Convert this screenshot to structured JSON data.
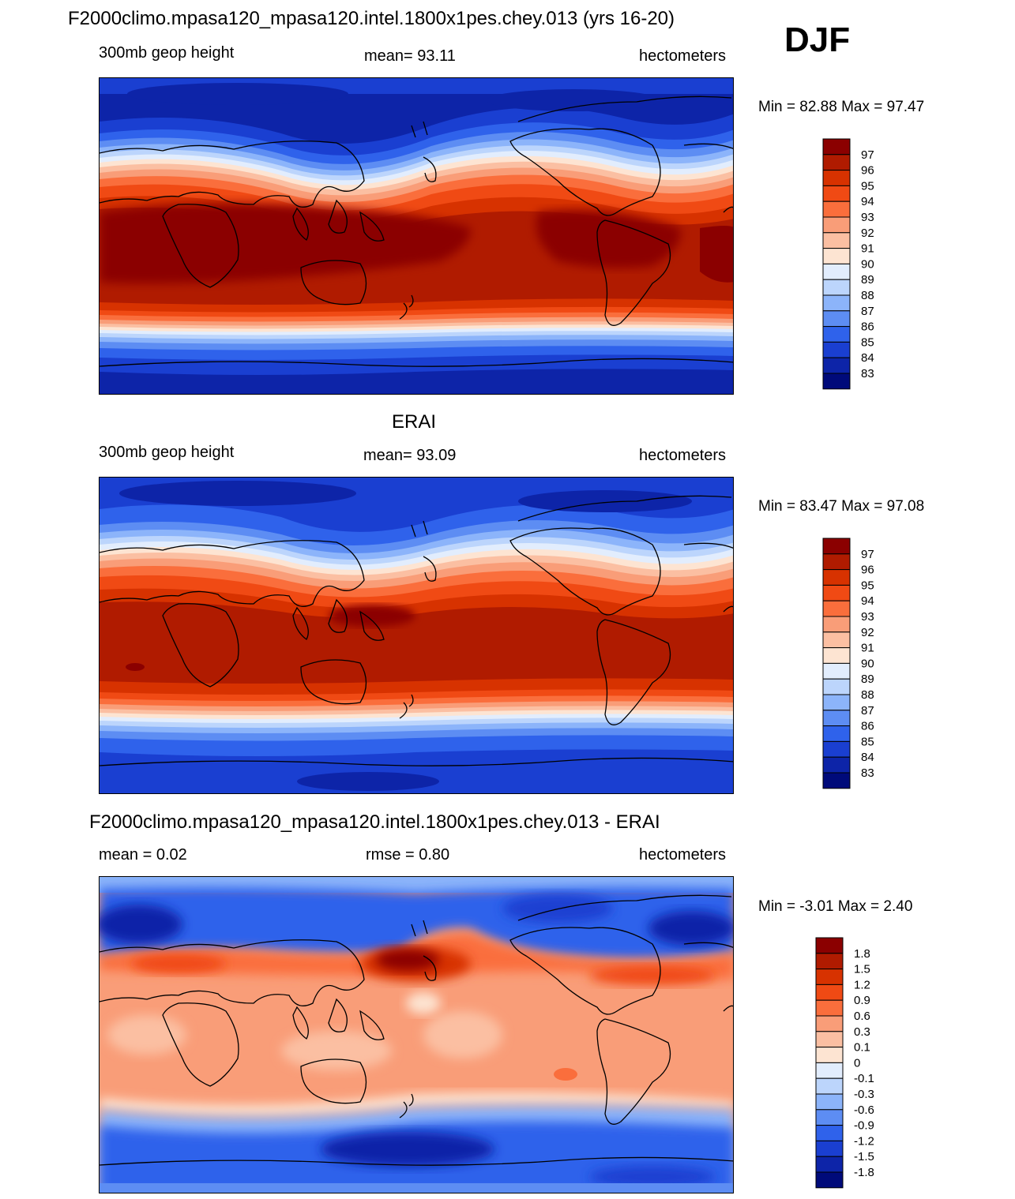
{
  "header": {
    "title": "F2000climo.mpasa120_mpasa120.intel.1800x1pes.chey.013 (yrs 16-20)",
    "season": "DJF"
  },
  "panels": [
    {
      "title": "",
      "left_label": "300mb geop height",
      "center_label": "mean=  93.11",
      "right_label": "hectometers",
      "minmax": "Min =  82.88 Max =  97.47",
      "colorbar": {
        "labels": [
          "97",
          "96",
          "95",
          "94",
          "93",
          "92",
          "91",
          "90",
          "89",
          "88",
          "87",
          "86",
          "85",
          "84",
          "83"
        ],
        "colors": [
          "#8b0000",
          "#b01b00",
          "#d73200",
          "#f04a14",
          "#fa6e3c",
          "#f99d78",
          "#fbbfa2",
          "#fde4d2",
          "#e2edfd",
          "#bcd5fc",
          "#8cb4fa",
          "#5d8df3",
          "#2f62eb",
          "#1a3fd1",
          "#0d24a8",
          "#000a7a"
        ]
      }
    },
    {
      "title": "ERAI",
      "left_label": "300mb geop height",
      "center_label": "mean=  93.09",
      "right_label": "hectometers",
      "minmax": "Min =  83.47 Max =  97.08",
      "colorbar": {
        "labels": [
          "97",
          "96",
          "95",
          "94",
          "93",
          "92",
          "91",
          "90",
          "89",
          "88",
          "87",
          "86",
          "85",
          "84",
          "83"
        ],
        "colors": [
          "#8b0000",
          "#b01b00",
          "#d73200",
          "#f04a14",
          "#fa6e3c",
          "#f99d78",
          "#fbbfa2",
          "#fde4d2",
          "#e2edfd",
          "#bcd5fc",
          "#8cb4fa",
          "#5d8df3",
          "#2f62eb",
          "#1a3fd1",
          "#0d24a8",
          "#000a7a"
        ]
      }
    },
    {
      "title": "F2000climo.mpasa120_mpasa120.intel.1800x1pes.chey.013 - ERAI",
      "left_label": "mean =   0.02",
      "center_label": "rmse =   0.80",
      "right_label": "hectometers",
      "minmax": "Min =  -3.01 Max =   2.40",
      "colorbar": {
        "labels": [
          "1.8",
          "1.5",
          "1.2",
          "0.9",
          "0.6",
          "0.3",
          "0.1",
          "0",
          "-0.1",
          "-0.3",
          "-0.6",
          "-0.9",
          "-1.2",
          "-1.5",
          "-1.8"
        ],
        "colors": [
          "#8b0000",
          "#b01b00",
          "#d73200",
          "#f04a14",
          "#fa6e3c",
          "#f99d78",
          "#fbbfa2",
          "#fde4d2",
          "#e2edfd",
          "#bcd5fc",
          "#8cb4fa",
          "#5d8df3",
          "#2f62eb",
          "#1a3fd1",
          "#0d24a8",
          "#000a7a"
        ]
      }
    }
  ]
}
